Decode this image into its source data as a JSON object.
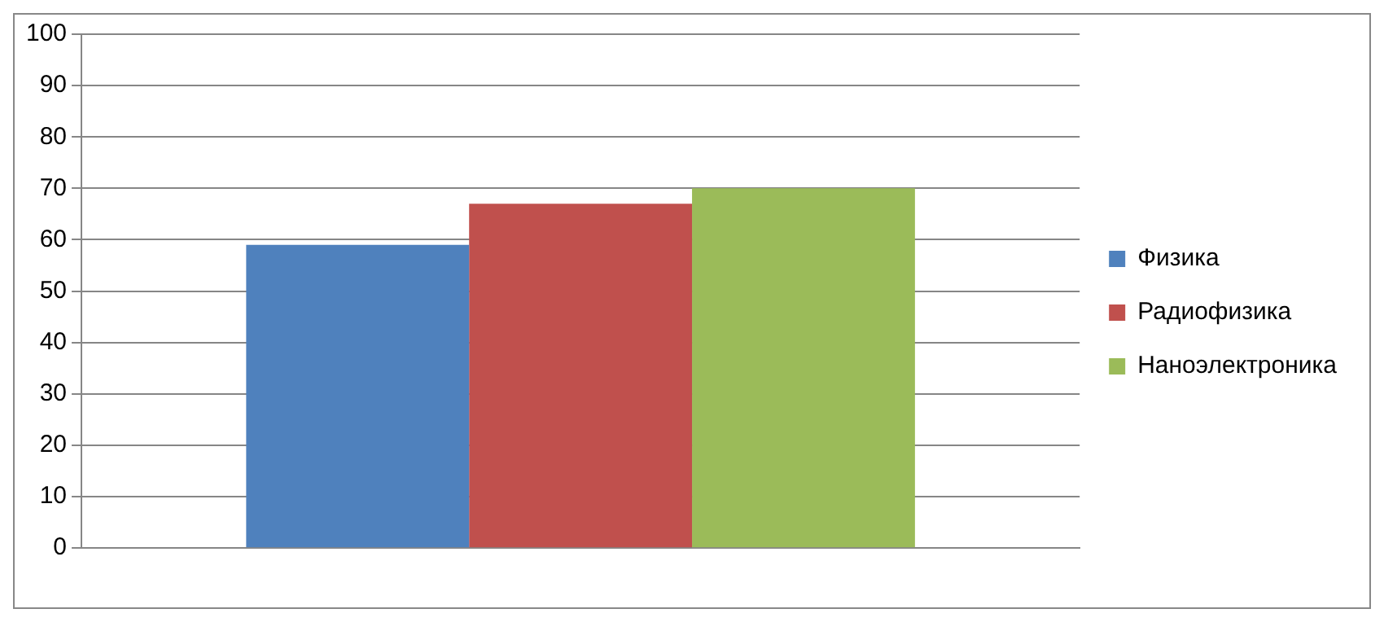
{
  "chart_data": {
    "type": "bar",
    "categories": [
      null
    ],
    "series": [
      {
        "name": "Физика",
        "color": "#4f81bd",
        "values": [
          59
        ]
      },
      {
        "name": "Радиофизика",
        "color": "#c0504d",
        "values": [
          67
        ]
      },
      {
        "name": "Наноэлектроника",
        "color": "#9bbb59",
        "values": [
          70
        ]
      }
    ],
    "ylim": [
      0,
      100
    ],
    "yticks": [
      0,
      10,
      20,
      30,
      40,
      50,
      60,
      70,
      80,
      90,
      100
    ],
    "grid": "y",
    "legend": "right"
  }
}
